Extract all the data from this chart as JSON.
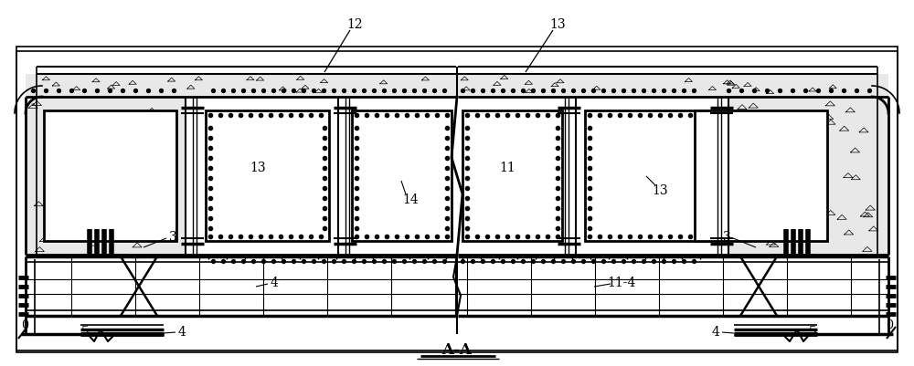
{
  "bg_color": "#ffffff",
  "line_color": "#000000",
  "title": "A-A",
  "fig_width": 10.0,
  "fig_height": 4.02,
  "dpi": 100
}
